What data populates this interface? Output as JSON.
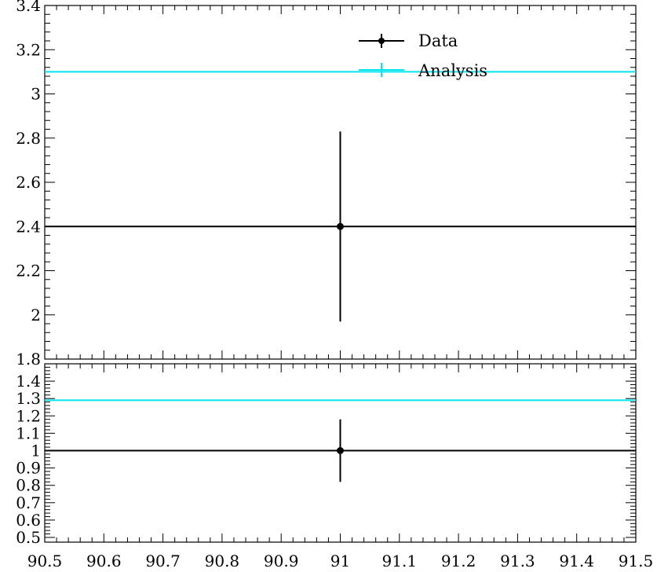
{
  "chart_data": [
    {
      "type": "scatter",
      "panel": "main",
      "xlim": [
        90.5,
        91.5
      ],
      "ylim": [
        1.8,
        3.4
      ],
      "x_ticks": [
        "90.5",
        "90.6",
        "90.7",
        "90.8",
        "90.9",
        "91",
        "91.1",
        "91.2",
        "91.3",
        "91.4",
        "91.5"
      ],
      "y_ticks": [
        "1.8",
        "2",
        "2.2",
        "2.4",
        "2.6",
        "2.8",
        "3",
        "3.2",
        "3.4"
      ],
      "legend": {
        "placement": "top-right",
        "entries": [
          "Data",
          "Analysis"
        ]
      },
      "series": [
        {
          "name": "Data",
          "color": "#000000",
          "points": [
            {
              "x": 91.0,
              "xerr": [
                90.5,
                91.5
              ],
              "y": 2.4,
              "yerr": [
                1.97,
                2.83
              ]
            }
          ]
        },
        {
          "name": "Analysis",
          "color": "#00e5ee",
          "points": [
            {
              "x": 91.0,
              "xerr": [
                90.5,
                91.5
              ],
              "y": 3.1
            }
          ]
        }
      ]
    },
    {
      "type": "scatter",
      "panel": "ratio",
      "xlim": [
        90.5,
        91.5
      ],
      "ylim": [
        0.5,
        1.5
      ],
      "y_ticks": [
        "0.5",
        "0.6",
        "0.7",
        "0.8",
        "0.9",
        "1",
        "1.1",
        "1.2",
        "1.3",
        "1.4"
      ],
      "series": [
        {
          "name": "Data",
          "color": "#000000",
          "points": [
            {
              "x": 91.0,
              "xerr": [
                90.5,
                91.5
              ],
              "y": 1.0,
              "yerr": [
                0.82,
                1.18
              ]
            }
          ]
        },
        {
          "name": "Analysis",
          "color": "#00e5ee",
          "points": [
            {
              "x": 91.0,
              "xerr": [
                90.5,
                91.5
              ],
              "y": 1.29
            }
          ]
        }
      ]
    }
  ]
}
